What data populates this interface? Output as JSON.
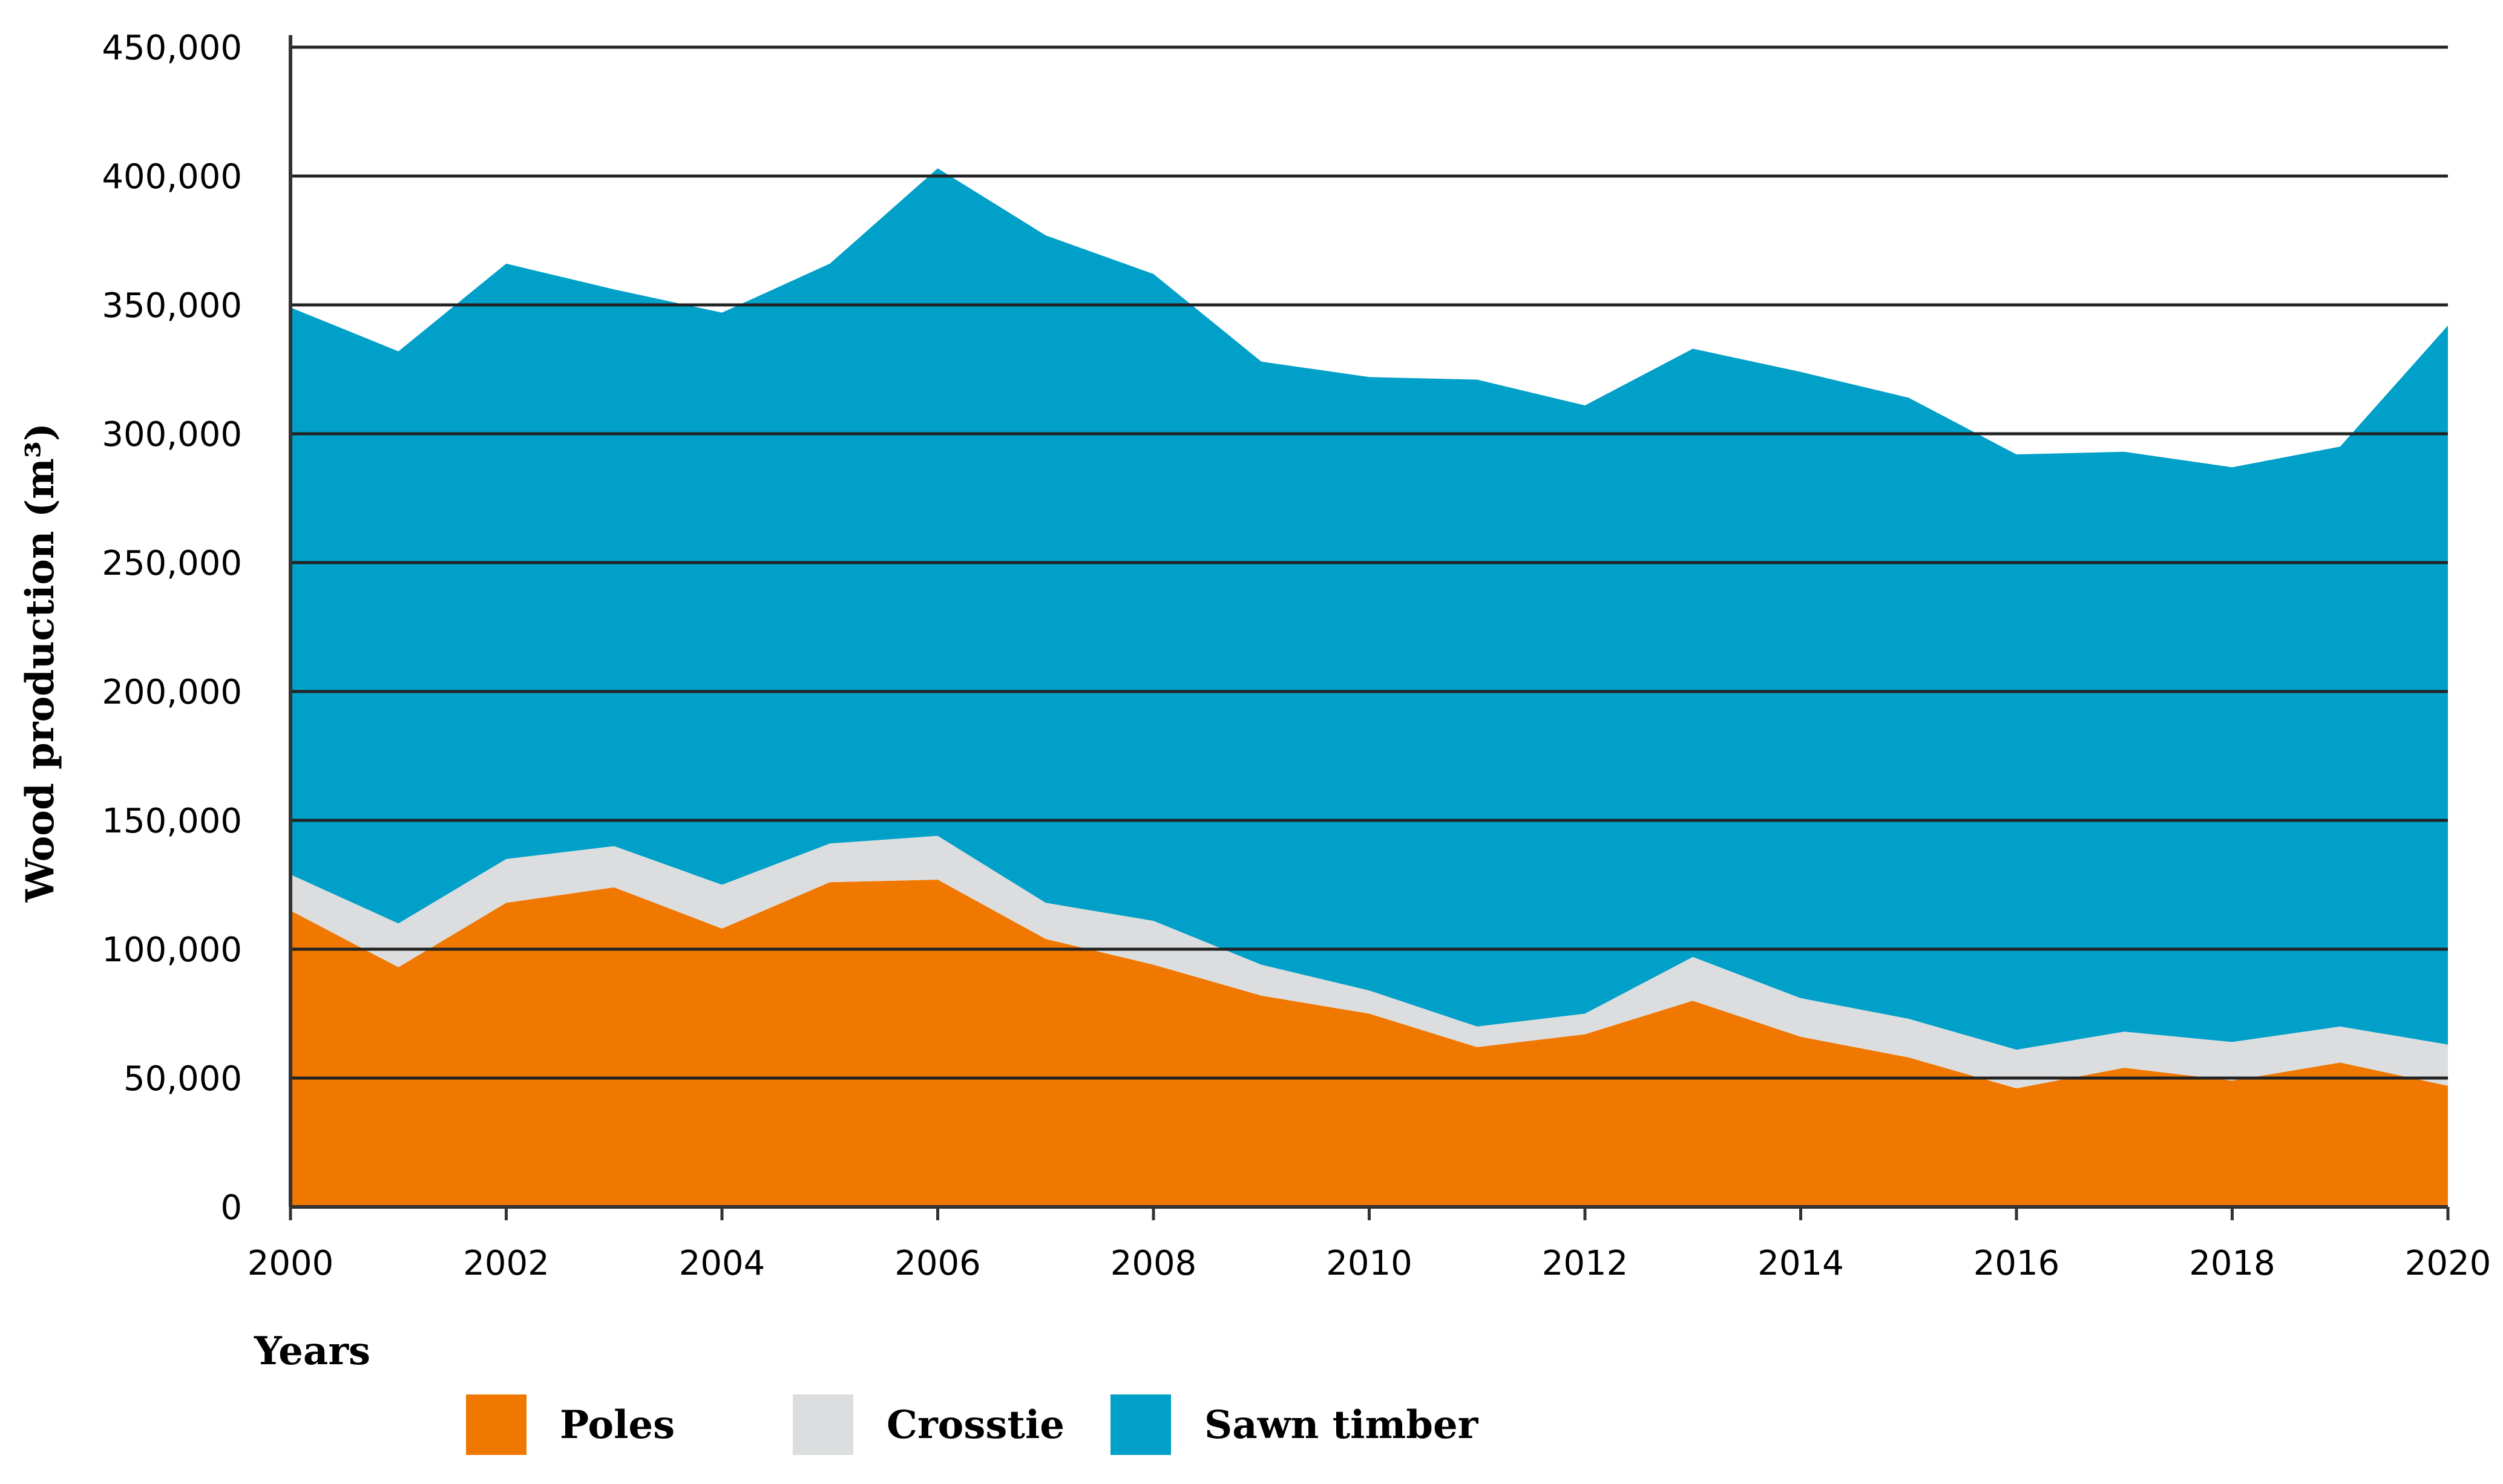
{
  "chart_data": {
    "type": "area",
    "stacked": true,
    "title": "",
    "xlabel": "Years",
    "ylabel": "Wood production (m³)",
    "x": [
      2000,
      2001,
      2002,
      2003,
      2004,
      2005,
      2006,
      2007,
      2008,
      2009,
      2010,
      2011,
      2012,
      2013,
      2014,
      2015,
      2016,
      2017,
      2018,
      2019,
      2020
    ],
    "xticks": [
      "2000",
      "2002",
      "2004",
      "2006",
      "2008",
      "2010",
      "2012",
      "2014",
      "2016",
      "2018",
      "2020"
    ],
    "yticks": [
      "0",
      "50,000",
      "100,000",
      "150,000",
      "200,000",
      "250,000",
      "300,000",
      "350,000",
      "400,000",
      "450,000"
    ],
    "ylim": [
      0,
      450000
    ],
    "grid": "horizontal",
    "legend_position": "bottom",
    "series": [
      {
        "name": "Poles",
        "color": "#f07800",
        "values": [
          115000,
          93000,
          118000,
          124000,
          108000,
          126000,
          127000,
          104000,
          94000,
          82000,
          75000,
          62000,
          67000,
          80000,
          66000,
          58000,
          46000,
          54000,
          49000,
          56000,
          47000
        ]
      },
      {
        "name": "Crosstie",
        "color": "#dcdddf",
        "values": [
          14000,
          17000,
          17000,
          16000,
          17000,
          15000,
          17000,
          14000,
          17000,
          12000,
          9000,
          8000,
          8000,
          17000,
          15000,
          15000,
          15000,
          14000,
          15000,
          14000,
          16000
        ]
      },
      {
        "name": "Sawn timber",
        "color": "#00a0c8",
        "values": [
          220000,
          222000,
          231000,
          216000,
          222000,
          225000,
          259000,
          259000,
          251000,
          234000,
          238000,
          251000,
          236000,
          236000,
          243000,
          241000,
          231000,
          225000,
          223000,
          225000,
          279000
        ]
      }
    ]
  }
}
